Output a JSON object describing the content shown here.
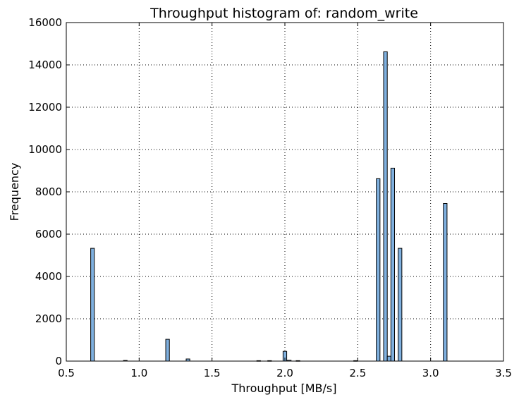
{
  "chart_data": {
    "type": "bar",
    "title": "Throughput histogram of: random_write",
    "xlabel": "Throughput [MB/s]",
    "ylabel": "Frequency",
    "xlim": [
      0.5,
      3.5
    ],
    "ylim": [
      0,
      16000
    ],
    "xticks": [
      "0.5",
      "1.0",
      "1.5",
      "2.0",
      "2.5",
      "3.0",
      "3.5"
    ],
    "yticks": [
      "0",
      "2000",
      "4000",
      "6000",
      "8000",
      "10000",
      "12000",
      "14000",
      "16000"
    ],
    "grid": true,
    "bar_color": "#7fb0df",
    "bin_width": 0.025,
    "bins": [
      {
        "x": 0.68,
        "value": 5330
      },
      {
        "x": 0.905,
        "value": 30
      },
      {
        "x": 1.195,
        "value": 1030
      },
      {
        "x": 1.335,
        "value": 100
      },
      {
        "x": 1.82,
        "value": 20
      },
      {
        "x": 1.895,
        "value": 20
      },
      {
        "x": 2.0,
        "value": 460
      },
      {
        "x": 2.03,
        "value": 40
      },
      {
        "x": 2.09,
        "value": 20
      },
      {
        "x": 2.485,
        "value": 20
      },
      {
        "x": 2.64,
        "value": 8620
      },
      {
        "x": 2.69,
        "value": 14620
      },
      {
        "x": 2.715,
        "value": 230
      },
      {
        "x": 2.74,
        "value": 9120
      },
      {
        "x": 2.79,
        "value": 5330
      },
      {
        "x": 3.1,
        "value": 7450
      }
    ]
  }
}
